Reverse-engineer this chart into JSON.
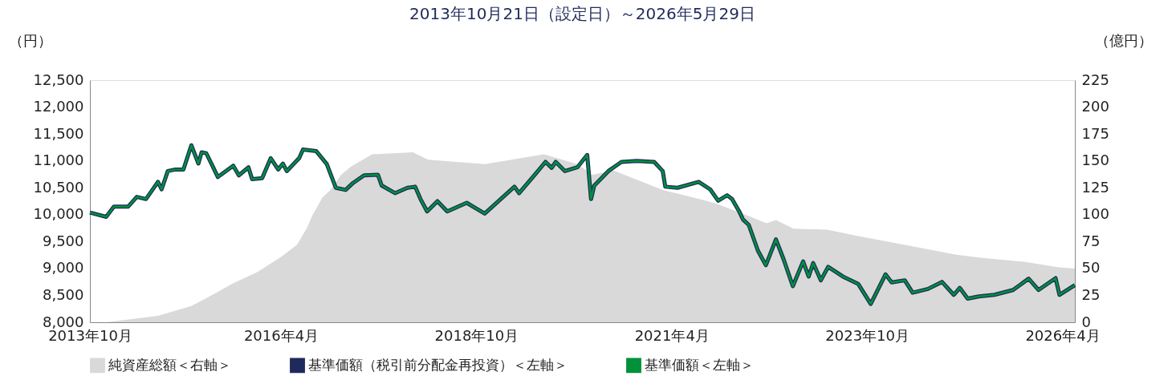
{
  "chart_data": {
    "type": "line",
    "title": "2013年10月21日（設定日）～2026年5月29日",
    "ylabel": "（円）",
    "y2label": "（億円）",
    "legend": "bottom",
    "xlim": [
      "2013-10-21",
      "2026-05-29"
    ],
    "xticks": [
      {
        "value": "2013-10-21",
        "label": "2013年10月"
      },
      {
        "value": "2016-04-01",
        "label": "2016年4月"
      },
      {
        "value": "2018-10-01",
        "label": "2018年10月"
      },
      {
        "value": "2021-04-01",
        "label": "2021年4月"
      },
      {
        "value": "2023-10-01",
        "label": "2023年10月"
      },
      {
        "value": "2026-04-01",
        "label": "2026年4月"
      }
    ],
    "ylim": [
      8000,
      12500
    ],
    "yticks": [
      {
        "value": 8000,
        "label": "8,000"
      },
      {
        "value": 8500,
        "label": "8,500"
      },
      {
        "value": 9000,
        "label": "9,000"
      },
      {
        "value": 9500,
        "label": "9,500"
      },
      {
        "value": 10000,
        "label": "10,000"
      },
      {
        "value": 10500,
        "label": "10,500"
      },
      {
        "value": 11000,
        "label": "11,000"
      },
      {
        "value": 11500,
        "label": "11,500"
      },
      {
        "value": 12000,
        "label": "12,000"
      },
      {
        "value": 12500,
        "label": "12,500"
      }
    ],
    "y2lim": [
      0,
      225
    ],
    "y2ticks": [
      0,
      25,
      50,
      75,
      100,
      125,
      150,
      175,
      200,
      225
    ],
    "series": [
      {
        "name": "純資産総額＜右軸＞",
        "type": "area",
        "axis": "y2",
        "color": "#d9d9d9",
        "x": [
          "2013-10-21",
          "2014-01-05",
          "2014-09-04",
          "2015-02-07",
          "2015-05-12",
          "2015-08-19",
          "2015-12-15",
          "2016-04-04",
          "2016-06-15",
          "2016-08-01",
          "2016-08-25",
          "2016-10-12",
          "2016-11-18",
          "2017-01-07",
          "2017-02-24",
          "2017-06-01",
          "2017-12-08",
          "2018-02-19",
          "2018-11-09",
          "2019-08-13",
          "2020-01-16",
          "2020-03-26",
          "2020-07-04",
          "2021-02-18",
          "2021-07-10",
          "2021-10-15",
          "2022-02-13",
          "2022-06-18",
          "2022-08-01",
          "2022-10-22",
          "2023-03-28",
          "2023-08-21",
          "2024-05-15",
          "2024-11-15",
          "2025-03-15",
          "2025-10-10",
          "2026-03-15",
          "2026-05-29"
        ],
        "values": [
          0,
          0,
          6,
          15,
          25,
          36,
          47,
          61,
          72,
          88,
          99,
          116,
          123,
          137,
          145,
          156,
          158,
          151,
          147,
          156,
          147,
          137,
          141,
          123,
          116,
          111,
          102,
          92,
          95,
          87,
          86,
          80,
          70,
          63,
          60,
          56,
          51,
          50
        ]
      },
      {
        "name": "基準価額（税引前分配金再投資）＜左軸＞",
        "type": "line",
        "color": "#1f2a5c",
        "x": [
          "2013-10-21",
          "2014-01-05",
          "2014-02-10",
          "2014-04-18",
          "2014-05-28",
          "2014-07-10",
          "2014-09-04",
          "2014-09-21",
          "2014-10-20",
          "2014-11-25",
          "2015-01-01",
          "2015-02-07",
          "2015-03-12",
          "2015-03-27",
          "2015-04-18",
          "2015-05-20",
          "2015-06-11",
          "2015-08-22",
          "2015-09-17",
          "2015-11-01",
          "2015-11-18",
          "2016-01-04",
          "2016-02-13",
          "2016-03-19",
          "2016-04-10",
          "2016-04-28",
          "2016-06-25",
          "2016-07-13",
          "2016-09-13",
          "2016-11-01",
          "2016-12-13",
          "2017-01-28",
          "2017-03-04",
          "2017-04-24",
          "2017-06-28",
          "2017-07-16",
          "2017-09-16",
          "2017-11-13",
          "2017-12-19",
          "2018-01-13",
          "2018-02-13",
          "2018-04-02",
          "2018-05-18",
          "2018-08-17",
          "2018-11-09",
          "2018-12-29",
          "2019-03-28",
          "2019-04-19",
          "2019-07-07",
          "2019-08-20",
          "2019-09-18",
          "2019-10-07",
          "2019-11-19",
          "2020-01-16",
          "2020-03-02",
          "2020-03-20",
          "2020-04-04",
          "2020-06-09",
          "2020-08-09",
          "2020-10-20",
          "2021-01-09",
          "2021-02-18",
          "2021-03-02",
          "2021-04-28",
          "2021-08-05",
          "2021-09-28",
          "2021-11-04",
          "2021-12-16",
          "2022-01-08",
          "2022-02-13",
          "2022-02-28",
          "2022-03-27",
          "2022-05-09",
          "2022-06-15",
          "2022-08-01",
          "2022-09-06",
          "2022-10-19",
          "2022-12-06",
          "2023-01-01",
          "2023-01-22",
          "2023-02-27",
          "2023-04-02",
          "2023-06-10",
          "2023-08-21",
          "2023-10-18",
          "2023-12-26",
          "2024-01-24",
          "2024-03-25",
          "2024-05-01",
          "2024-07-12",
          "2024-09-15",
          "2024-11-09",
          "2024-12-07",
          "2025-01-13",
          "2025-03-07",
          "2025-05-18",
          "2025-08-13",
          "2025-10-25",
          "2025-12-10",
          "2026-02-28",
          "2026-03-18",
          "2026-05-29"
        ],
        "values": [
          10040,
          9960,
          10150,
          10150,
          10330,
          10290,
          10610,
          10470,
          10810,
          10840,
          10840,
          11290,
          10950,
          11160,
          11140,
          10880,
          10700,
          10910,
          10730,
          10880,
          10660,
          10680,
          11050,
          10840,
          10950,
          10810,
          11050,
          11210,
          11180,
          10940,
          10500,
          10460,
          10590,
          10730,
          10740,
          10540,
          10400,
          10500,
          10520,
          10290,
          10060,
          10250,
          10060,
          10220,
          10020,
          10200,
          10520,
          10400,
          10770,
          10980,
          10870,
          10980,
          10810,
          10880,
          11110,
          10290,
          10540,
          10810,
          10980,
          11000,
          10980,
          10810,
          10520,
          10500,
          10610,
          10470,
          10260,
          10360,
          10290,
          10040,
          9910,
          9810,
          9330,
          9060,
          9540,
          9170,
          8670,
          9130,
          8850,
          9100,
          8780,
          9030,
          8850,
          8710,
          8340,
          8890,
          8740,
          8780,
          8550,
          8620,
          8750,
          8510,
          8640,
          8440,
          8480,
          8510,
          8600,
          8810,
          8600,
          8820,
          8510,
          8690
        ]
      },
      {
        "name": "基準価額＜左軸＞",
        "type": "line",
        "color": "#00913a",
        "x": [
          "2013-10-21",
          "2014-01-05",
          "2014-02-10",
          "2014-04-18",
          "2014-05-28",
          "2014-07-10",
          "2014-09-04",
          "2014-09-21",
          "2014-10-20",
          "2014-11-25",
          "2015-01-01",
          "2015-02-07",
          "2015-03-12",
          "2015-03-27",
          "2015-04-18",
          "2015-05-20",
          "2015-06-11",
          "2015-08-22",
          "2015-09-17",
          "2015-11-01",
          "2015-11-18",
          "2016-01-04",
          "2016-02-13",
          "2016-03-19",
          "2016-04-10",
          "2016-04-28",
          "2016-06-25",
          "2016-07-13",
          "2016-09-13",
          "2016-11-01",
          "2016-12-13",
          "2017-01-28",
          "2017-03-04",
          "2017-04-24",
          "2017-06-28",
          "2017-07-16",
          "2017-09-16",
          "2017-11-13",
          "2017-12-19",
          "2018-01-13",
          "2018-02-13",
          "2018-04-02",
          "2018-05-18",
          "2018-08-17",
          "2018-11-09",
          "2018-12-29",
          "2019-03-28",
          "2019-04-19",
          "2019-07-07",
          "2019-08-20",
          "2019-09-18",
          "2019-10-07",
          "2019-11-19",
          "2020-01-16",
          "2020-03-02",
          "2020-03-20",
          "2020-04-04",
          "2020-06-09",
          "2020-08-09",
          "2020-10-20",
          "2021-01-09",
          "2021-02-18",
          "2021-03-02",
          "2021-04-28",
          "2021-08-05",
          "2021-09-28",
          "2021-11-04",
          "2021-12-16",
          "2022-01-08",
          "2022-02-13",
          "2022-02-28",
          "2022-03-27",
          "2022-05-09",
          "2022-06-15",
          "2022-08-01",
          "2022-09-06",
          "2022-10-19",
          "2022-12-06",
          "2023-01-01",
          "2023-01-22",
          "2023-02-27",
          "2023-04-02",
          "2023-06-10",
          "2023-08-21",
          "2023-10-18",
          "2023-12-26",
          "2024-01-24",
          "2024-03-25",
          "2024-05-01",
          "2024-07-12",
          "2024-09-15",
          "2024-11-09",
          "2024-12-07",
          "2025-01-13",
          "2025-03-07",
          "2025-05-18",
          "2025-08-13",
          "2025-10-25",
          "2025-12-10",
          "2026-02-28",
          "2026-03-18",
          "2026-05-29"
        ],
        "values": [
          10040,
          9960,
          10150,
          10150,
          10330,
          10290,
          10610,
          10470,
          10810,
          10840,
          10840,
          11290,
          10950,
          11160,
          11140,
          10880,
          10700,
          10910,
          10730,
          10880,
          10660,
          10680,
          11050,
          10840,
          10950,
          10810,
          11050,
          11210,
          11180,
          10940,
          10500,
          10460,
          10590,
          10730,
          10740,
          10540,
          10400,
          10500,
          10520,
          10290,
          10060,
          10250,
          10060,
          10220,
          10020,
          10200,
          10520,
          10400,
          10770,
          10980,
          10870,
          10980,
          10810,
          10880,
          11110,
          10290,
          10540,
          10810,
          10980,
          11000,
          10980,
          10810,
          10520,
          10500,
          10610,
          10470,
          10260,
          10360,
          10290,
          10040,
          9910,
          9810,
          9330,
          9060,
          9540,
          9170,
          8670,
          9130,
          8850,
          9100,
          8780,
          9030,
          8850,
          8710,
          8340,
          8890,
          8740,
          8780,
          8550,
          8620,
          8750,
          8510,
          8640,
          8440,
          8480,
          8510,
          8600,
          8810,
          8600,
          8820,
          8510,
          8690
        ]
      }
    ]
  }
}
